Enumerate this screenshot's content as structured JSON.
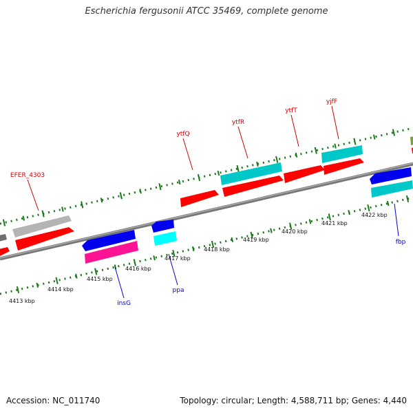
{
  "title": "Escherichia fergusonii ATCC 35469, complete genome",
  "footer": {
    "accession": "Accession: NC_011740",
    "summary": "Topology: circular; Length: 4,588,711 bp; Genes: 4,440"
  },
  "colors": {
    "backbone": "#808080",
    "tick": "#1a7a1a",
    "label_fwd": "#cc0000",
    "label_rev": "#0000cc",
    "red": "#ff0000",
    "cyan": "#00c8c8",
    "lightcyan": "#00ffff",
    "blue": "#0000ee",
    "magenta": "#ff1493",
    "gray": "#b4b4b4",
    "darkgray": "#6e6e6e",
    "olive": "#7aa03c"
  },
  "scale_labels": [
    "4413 kbp",
    "4414 kbp",
    "4415 kbp",
    "4416 kbp",
    "4417 kbp",
    "4418 kbp",
    "4419 kbp",
    "4420 kbp",
    "4421 kbp",
    "4422 kbp"
  ],
  "gene_labels": [
    {
      "text": "EFER_4303",
      "strand": "fwd"
    },
    {
      "text": "ytfQ",
      "strand": "fwd"
    },
    {
      "text": "ytfR",
      "strand": "fwd"
    },
    {
      "text": "ytfT",
      "strand": "fwd"
    },
    {
      "text": "yjfF",
      "strand": "fwd"
    },
    {
      "text": "insG",
      "strand": "rev"
    },
    {
      "text": "ppa",
      "strand": "rev"
    },
    {
      "text": "fbp",
      "strand": "rev"
    }
  ]
}
